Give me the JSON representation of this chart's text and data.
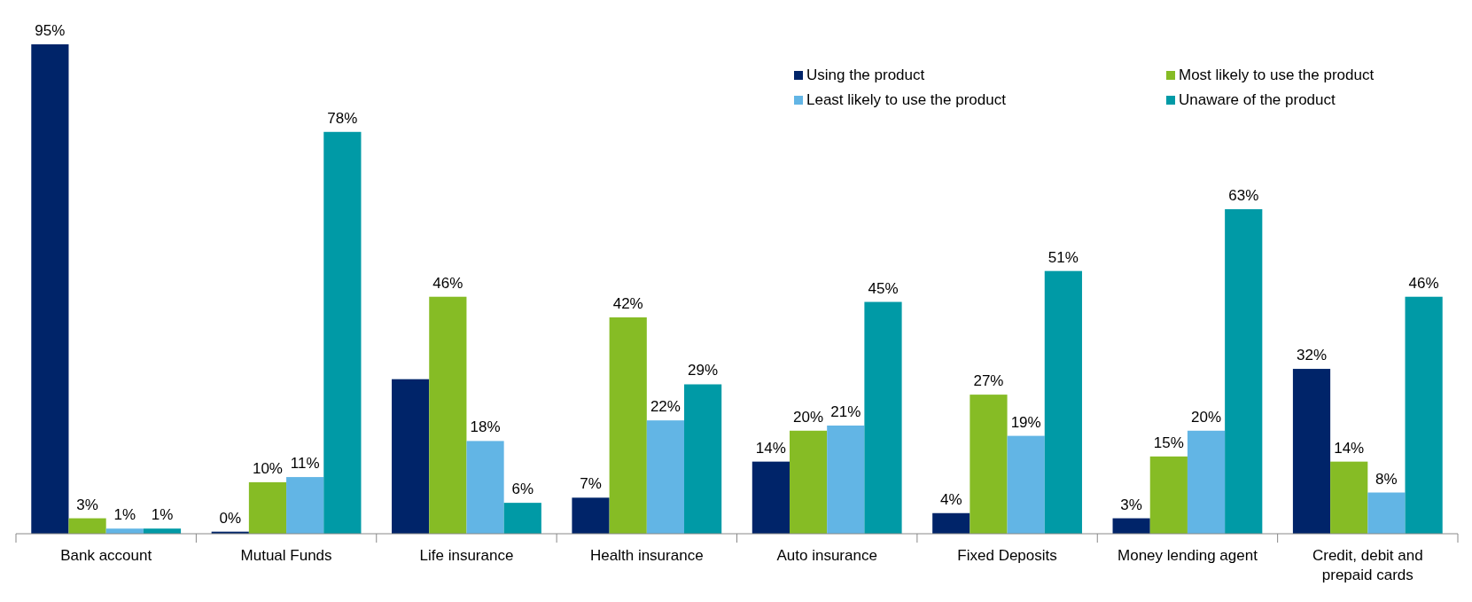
{
  "chart_data": {
    "type": "bar",
    "categories": [
      "Bank account",
      "Mutual Funds",
      "Life insurance",
      "Health insurance",
      "Auto insurance",
      "Fixed Deposits",
      "Money lending agent",
      "Credit, debit and prepaid cards"
    ],
    "series": [
      {
        "name": "Using the product",
        "color": "#002469",
        "values": [
          95,
          0.4,
          30,
          7,
          14,
          4,
          3,
          32
        ],
        "value_labels": [
          "95%",
          "0%",
          null,
          "7%",
          "14%",
          "4%",
          "3%",
          "32%"
        ]
      },
      {
        "name": "Most likely to use the product",
        "color": "#86bc25",
        "values": [
          3,
          10,
          46,
          42,
          20,
          27,
          15,
          14
        ],
        "value_labels": [
          "3%",
          "10%",
          "46%",
          "42%",
          "20%",
          "27%",
          "15%",
          "14%"
        ]
      },
      {
        "name": "Least likely to use the product",
        "color": "#62b5e5",
        "values": [
          1,
          11,
          18,
          22,
          21,
          19,
          20,
          8
        ],
        "value_labels": [
          "1%",
          "11%",
          "18%",
          "22%",
          "21%",
          "19%",
          "20%",
          "8%"
        ]
      },
      {
        "name": "Unaware of the product",
        "color": "#009aa6",
        "values": [
          1,
          78,
          6,
          29,
          45,
          51,
          63,
          46
        ],
        "value_labels": [
          "1%",
          "78%",
          "6%",
          "29%",
          "45%",
          "51%",
          "63%",
          "46%"
        ]
      }
    ],
    "legend": "top right"
  }
}
